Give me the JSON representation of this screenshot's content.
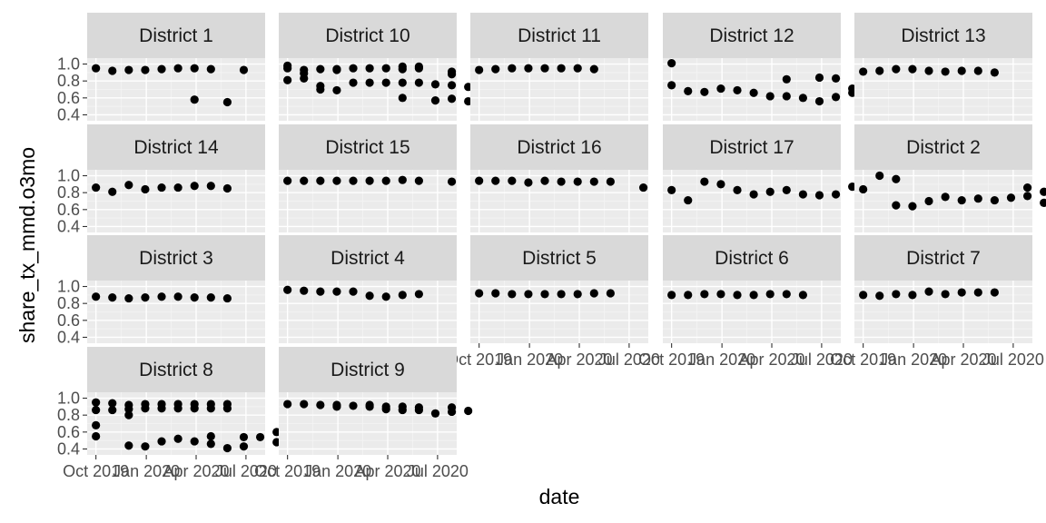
{
  "chart_data": {
    "type": "scatter",
    "xlabel": "date",
    "ylabel": "share_tx_mmd.o3mo",
    "ylim": [
      0.33,
      1.07
    ],
    "y_ticks": [
      0.4,
      0.6,
      0.8,
      1.0
    ],
    "y_tick_labels": [
      "0.4",
      "0.6",
      "0.8",
      "1.0"
    ],
    "x_domain": [
      "2019-09-15",
      "2020-08-05"
    ],
    "x_ticks": [
      "2019-10-01",
      "2020-01-01",
      "2020-04-01",
      "2020-07-01"
    ],
    "x_tick_labels": [
      "Oct 2019",
      "Jan 2020",
      "Apr 2020",
      "Jul 2020"
    ],
    "grid": true,
    "facets": [
      {
        "strip": "District 1",
        "points": [
          [
            "2019-10-01",
            0.95
          ],
          [
            "2019-10-31",
            0.92
          ],
          [
            "2019-11-30",
            0.93
          ],
          [
            "2019-12-30",
            0.93
          ],
          [
            "2020-01-29",
            0.94
          ],
          [
            "2020-02-28",
            0.95
          ],
          [
            "2020-03-29",
            0.58
          ],
          [
            "2020-03-29",
            0.95
          ],
          [
            "2020-04-28",
            0.94
          ],
          [
            "2020-05-28",
            0.55
          ],
          [
            "2020-06-27",
            0.93
          ]
        ]
      },
      {
        "strip": "District 10",
        "points": [
          [
            "2019-10-01",
            0.98
          ],
          [
            "2019-10-01",
            0.95
          ],
          [
            "2019-10-01",
            0.81
          ],
          [
            "2019-10-31",
            0.93
          ],
          [
            "2019-10-31",
            0.89
          ],
          [
            "2019-10-31",
            0.83
          ],
          [
            "2019-11-30",
            0.94
          ],
          [
            "2019-11-30",
            0.74
          ],
          [
            "2019-11-30",
            0.7
          ],
          [
            "2019-12-30",
            0.94
          ],
          [
            "2019-12-30",
            0.69
          ],
          [
            "2019-12-30",
            0.93
          ],
          [
            "2020-01-29",
            0.95
          ],
          [
            "2020-01-29",
            0.78
          ],
          [
            "2020-02-28",
            0.95
          ],
          [
            "2020-02-28",
            0.78
          ],
          [
            "2020-03-29",
            0.95
          ],
          [
            "2020-03-29",
            0.78
          ],
          [
            "2020-04-28",
            0.97
          ],
          [
            "2020-04-28",
            0.94
          ],
          [
            "2020-04-28",
            0.78
          ],
          [
            "2020-04-28",
            0.6
          ],
          [
            "2020-05-28",
            0.97
          ],
          [
            "2020-05-28",
            0.95
          ],
          [
            "2020-05-28",
            0.78
          ],
          [
            "2020-06-27",
            0.76
          ],
          [
            "2020-06-27",
            0.57
          ],
          [
            "2020-07-27",
            0.91
          ],
          [
            "2020-07-27",
            0.88
          ],
          [
            "2020-07-27",
            0.75
          ],
          [
            "2020-07-27",
            0.59
          ],
          [
            "2020-08-26",
            0.73
          ],
          [
            "2020-08-26",
            0.56
          ]
        ]
      },
      {
        "strip": "District 11",
        "points": [
          [
            "2019-10-01",
            0.93
          ],
          [
            "2019-10-31",
            0.94
          ],
          [
            "2019-11-30",
            0.95
          ],
          [
            "2019-12-30",
            0.95
          ],
          [
            "2020-01-29",
            0.95
          ],
          [
            "2020-02-28",
            0.95
          ],
          [
            "2020-03-29",
            0.95
          ],
          [
            "2020-04-28",
            0.94
          ]
        ]
      },
      {
        "strip": "District 12",
        "points": [
          [
            "2019-10-01",
            1.01
          ],
          [
            "2019-10-01",
            0.75
          ],
          [
            "2019-10-31",
            0.68
          ],
          [
            "2019-11-30",
            0.67
          ],
          [
            "2019-12-30",
            0.71
          ],
          [
            "2020-01-29",
            0.69
          ],
          [
            "2020-02-28",
            0.66
          ],
          [
            "2020-03-29",
            0.62
          ],
          [
            "2020-04-28",
            0.82
          ],
          [
            "2020-04-28",
            0.62
          ],
          [
            "2020-05-28",
            0.6
          ],
          [
            "2020-06-27",
            0.84
          ],
          [
            "2020-06-27",
            0.56
          ],
          [
            "2020-07-27",
            0.83
          ],
          [
            "2020-07-27",
            0.61
          ],
          [
            "2020-08-26",
            0.71
          ],
          [
            "2020-08-26",
            0.66
          ]
        ]
      },
      {
        "strip": "District 13",
        "points": [
          [
            "2019-10-01",
            0.91
          ],
          [
            "2019-10-31",
            0.92
          ],
          [
            "2019-11-30",
            0.94
          ],
          [
            "2019-12-30",
            0.94
          ],
          [
            "2020-01-29",
            0.92
          ],
          [
            "2020-02-28",
            0.91
          ],
          [
            "2020-03-29",
            0.92
          ],
          [
            "2020-04-28",
            0.92
          ],
          [
            "2020-05-28",
            0.9
          ]
        ]
      },
      {
        "strip": "District 14",
        "points": [
          [
            "2019-10-01",
            0.86
          ],
          [
            "2019-10-31",
            0.81
          ],
          [
            "2019-11-30",
            0.89
          ],
          [
            "2019-12-30",
            0.84
          ],
          [
            "2020-01-29",
            0.86
          ],
          [
            "2020-02-28",
            0.86
          ],
          [
            "2020-03-29",
            0.88
          ],
          [
            "2020-04-28",
            0.88
          ],
          [
            "2020-05-28",
            0.85
          ]
        ]
      },
      {
        "strip": "District 15",
        "points": [
          [
            "2019-10-01",
            0.94
          ],
          [
            "2019-10-31",
            0.94
          ],
          [
            "2019-11-30",
            0.94
          ],
          [
            "2019-12-30",
            0.94
          ],
          [
            "2020-01-29",
            0.94
          ],
          [
            "2020-02-28",
            0.94
          ],
          [
            "2020-03-29",
            0.94
          ],
          [
            "2020-04-28",
            0.95
          ],
          [
            "2020-05-28",
            0.94
          ],
          [
            "2020-07-27",
            0.93
          ]
        ]
      },
      {
        "strip": "District 16",
        "points": [
          [
            "2019-10-01",
            0.94
          ],
          [
            "2019-10-31",
            0.94
          ],
          [
            "2019-11-30",
            0.94
          ],
          [
            "2019-12-30",
            0.92
          ],
          [
            "2020-01-29",
            0.94
          ],
          [
            "2020-02-28",
            0.93
          ],
          [
            "2020-03-29",
            0.93
          ],
          [
            "2020-04-28",
            0.93
          ],
          [
            "2020-05-28",
            0.93
          ],
          [
            "2020-07-27",
            0.86
          ]
        ]
      },
      {
        "strip": "District 17",
        "points": [
          [
            "2019-10-01",
            0.83
          ],
          [
            "2019-10-31",
            0.71
          ],
          [
            "2019-11-30",
            0.93
          ],
          [
            "2019-12-30",
            0.9
          ],
          [
            "2020-01-29",
            0.83
          ],
          [
            "2020-02-28",
            0.78
          ],
          [
            "2020-03-29",
            0.81
          ],
          [
            "2020-04-28",
            0.83
          ],
          [
            "2020-05-28",
            0.78
          ],
          [
            "2020-06-27",
            0.77
          ],
          [
            "2020-07-27",
            0.78
          ],
          [
            "2020-08-26",
            0.87
          ]
        ]
      },
      {
        "strip": "District 2",
        "points": [
          [
            "2019-10-01",
            0.84
          ],
          [
            "2019-10-31",
            1.0
          ],
          [
            "2019-11-30",
            0.96
          ],
          [
            "2019-11-30",
            0.65
          ],
          [
            "2019-12-30",
            0.64
          ],
          [
            "2020-01-29",
            0.7
          ],
          [
            "2020-02-28",
            0.75
          ],
          [
            "2020-03-29",
            0.71
          ],
          [
            "2020-04-28",
            0.73
          ],
          [
            "2020-05-28",
            0.71
          ],
          [
            "2020-06-27",
            0.74
          ],
          [
            "2020-07-27",
            0.86
          ],
          [
            "2020-07-27",
            0.76
          ],
          [
            "2020-08-26",
            0.81
          ],
          [
            "2020-08-26",
            0.68
          ]
        ]
      },
      {
        "strip": "District 3",
        "points": [
          [
            "2019-10-01",
            0.88
          ],
          [
            "2019-10-31",
            0.87
          ],
          [
            "2019-11-30",
            0.86
          ],
          [
            "2019-12-30",
            0.87
          ],
          [
            "2020-01-29",
            0.88
          ],
          [
            "2020-02-28",
            0.88
          ],
          [
            "2020-03-29",
            0.87
          ],
          [
            "2020-04-28",
            0.87
          ],
          [
            "2020-05-28",
            0.86
          ]
        ]
      },
      {
        "strip": "District 4",
        "points": [
          [
            "2019-10-01",
            0.96
          ],
          [
            "2019-10-31",
            0.95
          ],
          [
            "2019-11-30",
            0.94
          ],
          [
            "2019-12-30",
            0.94
          ],
          [
            "2020-01-29",
            0.94
          ],
          [
            "2020-02-28",
            0.89
          ],
          [
            "2020-03-29",
            0.88
          ],
          [
            "2020-04-28",
            0.9
          ],
          [
            "2020-05-28",
            0.91
          ]
        ]
      },
      {
        "strip": "District 5",
        "points": [
          [
            "2019-10-01",
            0.92
          ],
          [
            "2019-10-31",
            0.92
          ],
          [
            "2019-11-30",
            0.91
          ],
          [
            "2019-12-30",
            0.91
          ],
          [
            "2020-01-29",
            0.91
          ],
          [
            "2020-02-28",
            0.91
          ],
          [
            "2020-03-29",
            0.91
          ],
          [
            "2020-04-28",
            0.92
          ],
          [
            "2020-05-28",
            0.92
          ]
        ]
      },
      {
        "strip": "District 6",
        "points": [
          [
            "2019-10-01",
            0.9
          ],
          [
            "2019-10-31",
            0.9
          ],
          [
            "2019-11-30",
            0.91
          ],
          [
            "2019-12-30",
            0.91
          ],
          [
            "2020-01-29",
            0.9
          ],
          [
            "2020-02-28",
            0.9
          ],
          [
            "2020-03-29",
            0.91
          ],
          [
            "2020-04-28",
            0.91
          ],
          [
            "2020-05-28",
            0.9
          ]
        ]
      },
      {
        "strip": "District 7",
        "points": [
          [
            "2019-10-01",
            0.9
          ],
          [
            "2019-10-31",
            0.89
          ],
          [
            "2019-11-30",
            0.91
          ],
          [
            "2019-12-30",
            0.9
          ],
          [
            "2020-01-29",
            0.94
          ],
          [
            "2020-02-28",
            0.91
          ],
          [
            "2020-03-29",
            0.93
          ],
          [
            "2020-04-28",
            0.93
          ],
          [
            "2020-05-28",
            0.93
          ]
        ]
      },
      {
        "strip": "District 8",
        "points": [
          [
            "2019-10-01",
            0.95
          ],
          [
            "2019-10-01",
            0.86
          ],
          [
            "2019-10-01",
            0.68
          ],
          [
            "2019-10-01",
            0.55
          ],
          [
            "2019-10-31",
            0.94
          ],
          [
            "2019-10-31",
            0.86
          ],
          [
            "2019-11-30",
            0.92
          ],
          [
            "2019-11-30",
            0.87
          ],
          [
            "2019-11-30",
            0.8
          ],
          [
            "2019-11-30",
            0.44
          ],
          [
            "2019-12-30",
            0.93
          ],
          [
            "2019-12-30",
            0.88
          ],
          [
            "2019-12-30",
            0.43
          ],
          [
            "2020-01-29",
            0.93
          ],
          [
            "2020-01-29",
            0.88
          ],
          [
            "2020-01-29",
            0.49
          ],
          [
            "2020-02-28",
            0.93
          ],
          [
            "2020-02-28",
            0.88
          ],
          [
            "2020-02-28",
            0.52
          ],
          [
            "2020-03-29",
            0.93
          ],
          [
            "2020-03-29",
            0.88
          ],
          [
            "2020-03-29",
            0.49
          ],
          [
            "2020-04-28",
            0.93
          ],
          [
            "2020-04-28",
            0.88
          ],
          [
            "2020-04-28",
            0.55
          ],
          [
            "2020-04-28",
            0.46
          ],
          [
            "2020-05-28",
            0.93
          ],
          [
            "2020-05-28",
            0.88
          ],
          [
            "2020-05-28",
            0.41
          ],
          [
            "2020-06-27",
            0.54
          ],
          [
            "2020-06-27",
            0.43
          ],
          [
            "2020-07-27",
            0.54
          ],
          [
            "2020-08-26",
            0.6
          ],
          [
            "2020-08-26",
            0.48
          ]
        ]
      },
      {
        "strip": "District 9",
        "points": [
          [
            "2019-10-01",
            0.93
          ],
          [
            "2019-10-31",
            0.93
          ],
          [
            "2019-11-30",
            0.92
          ],
          [
            "2019-12-30",
            0.9
          ],
          [
            "2019-12-30",
            0.92
          ],
          [
            "2020-01-29",
            0.91
          ],
          [
            "2020-02-28",
            0.92
          ],
          [
            "2020-02-28",
            0.9
          ],
          [
            "2020-03-29",
            0.9
          ],
          [
            "2020-03-29",
            0.87
          ],
          [
            "2020-04-28",
            0.9
          ],
          [
            "2020-04-28",
            0.86
          ],
          [
            "2020-05-28",
            0.89
          ],
          [
            "2020-05-28",
            0.86
          ],
          [
            "2020-06-27",
            0.82
          ],
          [
            "2020-07-27",
            0.89
          ],
          [
            "2020-07-27",
            0.84
          ],
          [
            "2020-08-26",
            0.85
          ]
        ]
      }
    ]
  }
}
